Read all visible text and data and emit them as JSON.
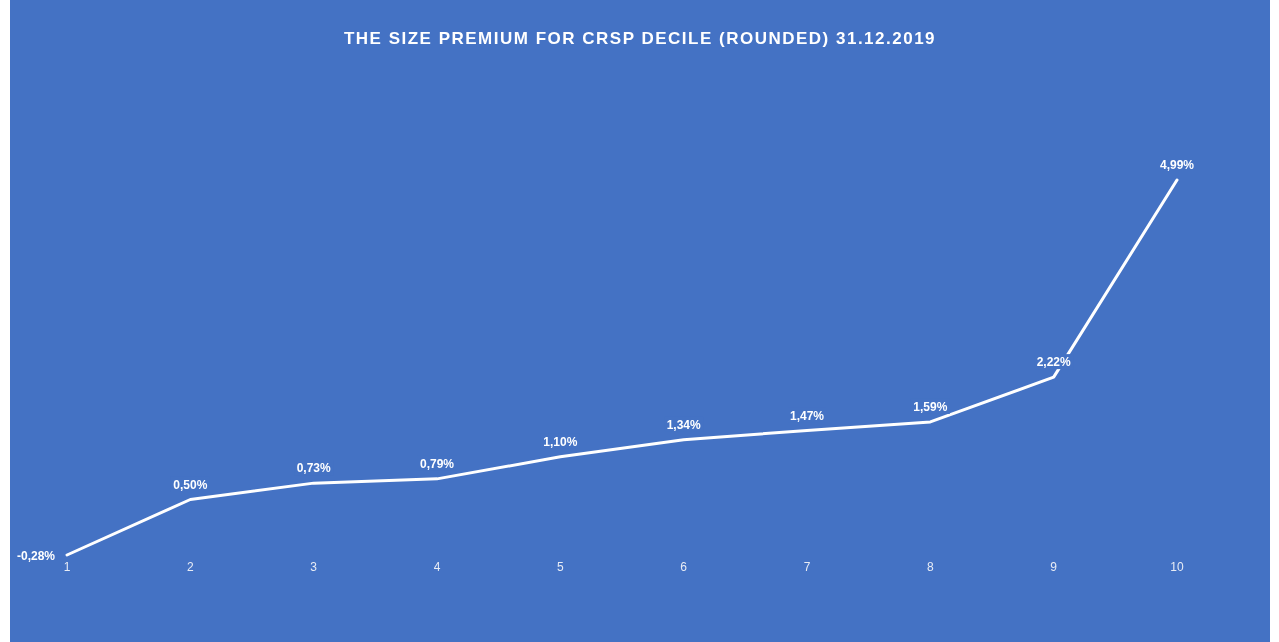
{
  "chart_data": {
    "type": "line",
    "title": "THE SIZE PREMIUM  FOR CRSP DECILE (ROUNDED) 31.12.2019",
    "categories": [
      "1",
      "2",
      "3",
      "4",
      "5",
      "6",
      "7",
      "8",
      "9",
      "10"
    ],
    "series": [
      {
        "color": "#ffffff",
        "values": [
          -0.28,
          0.5,
          0.73,
          0.79,
          1.1,
          1.34,
          1.47,
          1.59,
          2.22,
          4.99
        ],
        "value_labels": [
          "-0,28%",
          "0,50%",
          "0,73%",
          "0,79%",
          "1,10%",
          "1,34%",
          "1,47%",
          "1,59%",
          "2,22%",
          "4,99%"
        ]
      }
    ],
    "marker": "none",
    "line_style": "solid"
  }
}
